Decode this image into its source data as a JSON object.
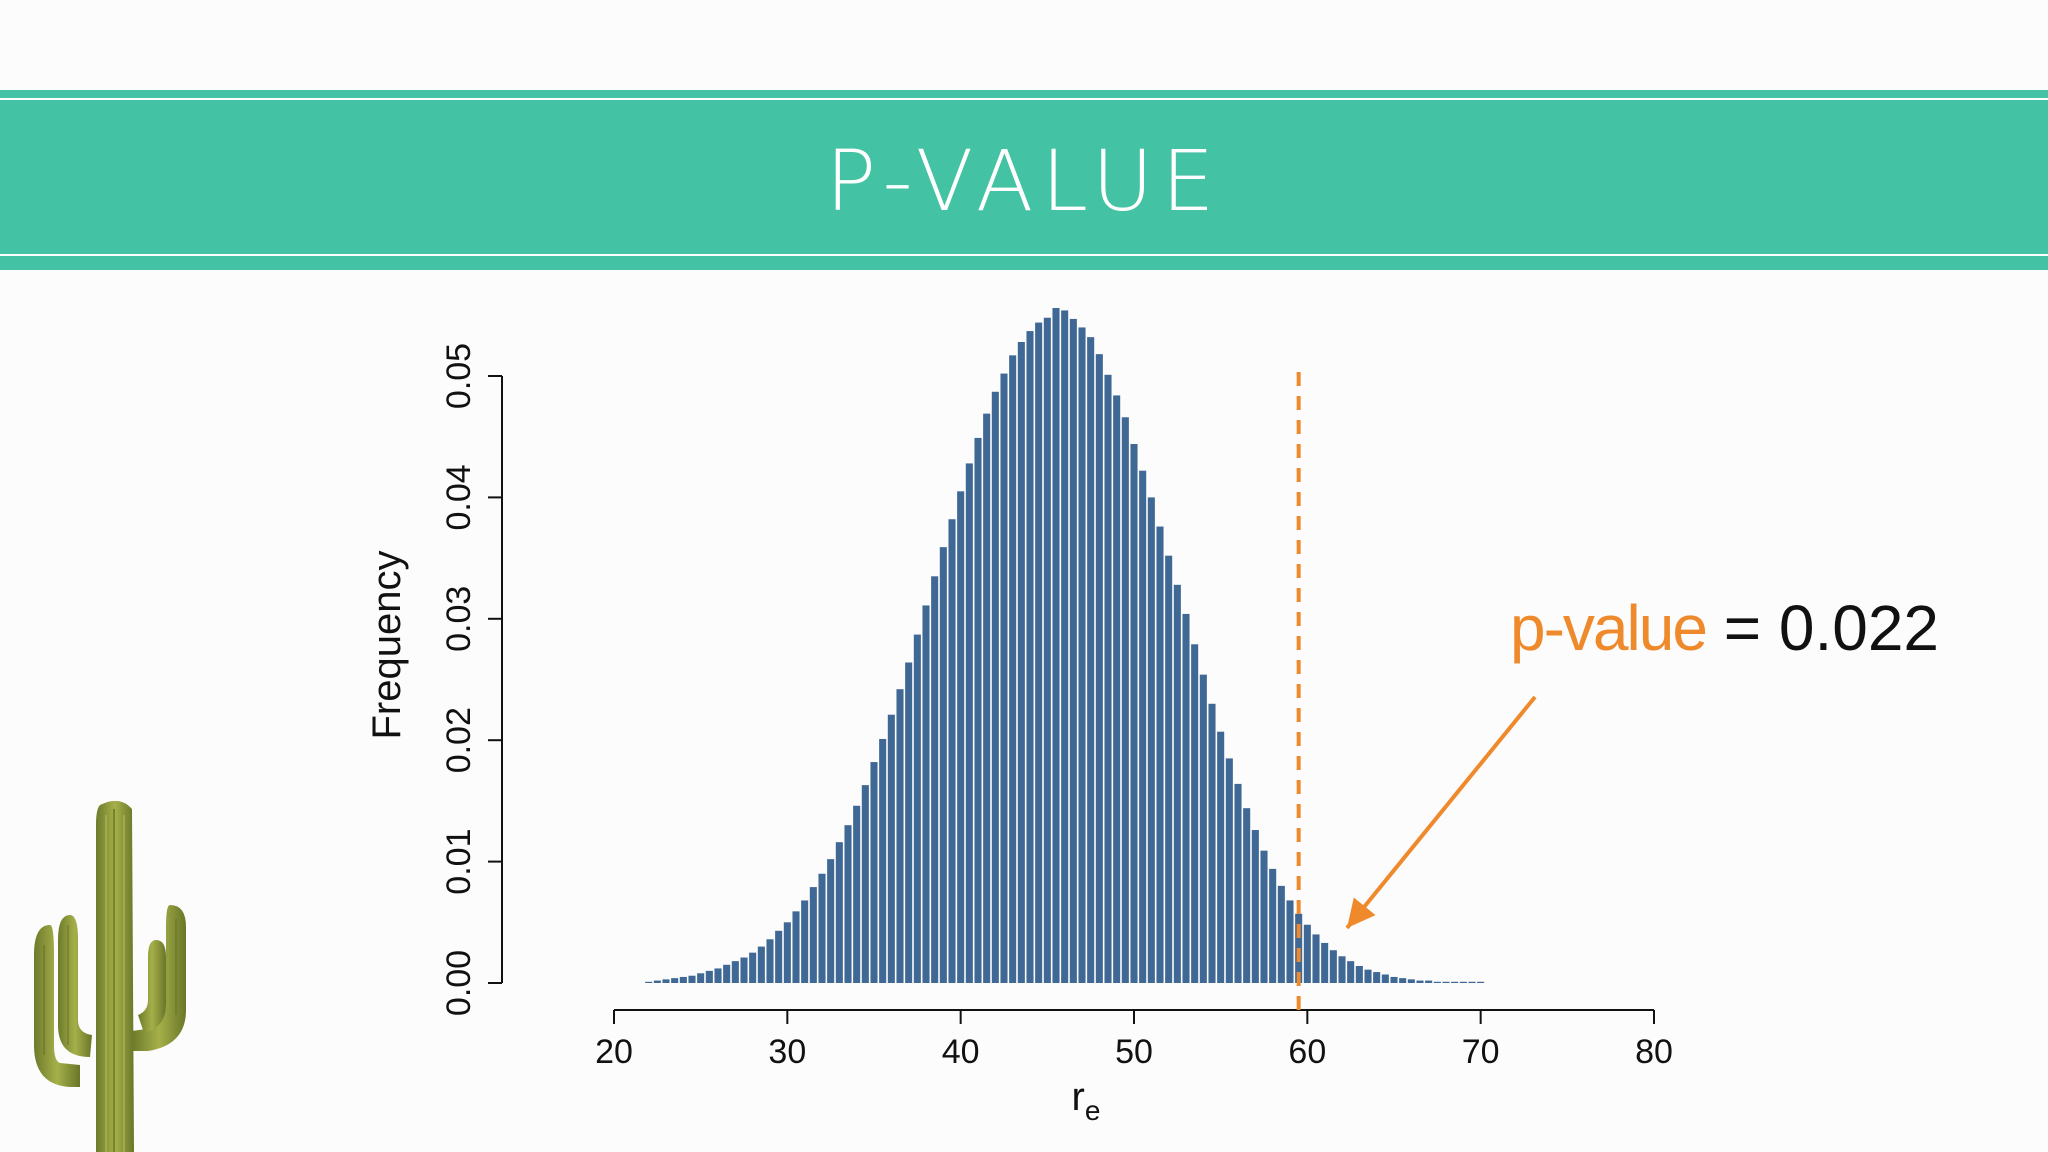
{
  "slide": {
    "title": "P-VALUE"
  },
  "annotation": {
    "term": "p-value",
    "equals": "=",
    "value": "0.022"
  },
  "colors": {
    "banner": "#43c3a4",
    "bars": "#3f6894",
    "threshold_line": "#ee8a2c",
    "arrow": "#ee8a2c",
    "text": "#111111"
  },
  "icons": {
    "decoration": "cactus-icon"
  },
  "chart_data": {
    "type": "bar",
    "title": "",
    "xlabel": "r",
    "xlabel_subscript": "e",
    "ylabel": "Frequency",
    "xlim": [
      20,
      80
    ],
    "ylim": [
      0,
      0.05
    ],
    "x_ticks": [
      20,
      30,
      40,
      50,
      60,
      70,
      80
    ],
    "x_tick_labels": [
      "20",
      "30",
      "40",
      "50",
      "60",
      "70",
      "80"
    ],
    "y_ticks": [
      0,
      0.01,
      0.02,
      0.03,
      0.04,
      0.05
    ],
    "y_tick_labels": [
      "0.00",
      "0.01",
      "0.02",
      "0.03",
      "0.04",
      "0.05"
    ],
    "bin_width": 0.5,
    "x": [
      22,
      22.5,
      23,
      23.5,
      24,
      24.5,
      25,
      25.5,
      26,
      26.5,
      27,
      27.5,
      28,
      28.5,
      29,
      29.5,
      30,
      30.5,
      31,
      31.5,
      32,
      32.5,
      33,
      33.5,
      34,
      34.5,
      35,
      35.5,
      36,
      36.5,
      37,
      37.5,
      38,
      38.5,
      39,
      39.5,
      40,
      40.5,
      41,
      41.5,
      42,
      42.5,
      43,
      43.5,
      44,
      44.5,
      45,
      45.5,
      46,
      46.5,
      47,
      47.5,
      48,
      48.5,
      49,
      49.5,
      50,
      50.5,
      51,
      51.5,
      52,
      52.5,
      53,
      53.5,
      54,
      54.5,
      55,
      55.5,
      56,
      56.5,
      57,
      57.5,
      58,
      58.5,
      59,
      59.5,
      60,
      60.5,
      61,
      61.5,
      62,
      62.5,
      63,
      63.5,
      64,
      64.5,
      65,
      65.5,
      66,
      66.5,
      67,
      67.5,
      68,
      68.5,
      69,
      69.5,
      70
    ],
    "values": [
      0.0001,
      0.0002,
      0.0003,
      0.0004,
      0.0005,
      0.0006,
      0.0008,
      0.001,
      0.0012,
      0.0015,
      0.0018,
      0.0021,
      0.0025,
      0.003,
      0.0036,
      0.0043,
      0.005,
      0.0059,
      0.0068,
      0.0079,
      0.009,
      0.0102,
      0.0116,
      0.013,
      0.0146,
      0.0163,
      0.0182,
      0.0201,
      0.0221,
      0.0242,
      0.0264,
      0.0287,
      0.0311,
      0.0335,
      0.0359,
      0.0382,
      0.0405,
      0.0428,
      0.0449,
      0.0469,
      0.0487,
      0.0502,
      0.0517,
      0.0528,
      0.0537,
      0.0544,
      0.0548,
      0.0556,
      0.0554,
      0.0547,
      0.054,
      0.0532,
      0.0518,
      0.0501,
      0.0484,
      0.0466,
      0.0444,
      0.0422,
      0.04,
      0.0376,
      0.0352,
      0.0328,
      0.0304,
      0.0279,
      0.0254,
      0.023,
      0.0207,
      0.0185,
      0.0164,
      0.0144,
      0.0126,
      0.0109,
      0.0094,
      0.008,
      0.0068,
      0.0057,
      0.0048,
      0.004,
      0.0033,
      0.0027,
      0.0022,
      0.0018,
      0.0014,
      0.0011,
      0.0009,
      0.0007,
      0.0005,
      0.0004,
      0.0003,
      0.0002,
      0.0002,
      0.0001,
      0.0001,
      0.0001,
      0.0001,
      0.0001,
      0.0001
    ],
    "threshold_x": 59.5,
    "threshold_style": "dashed",
    "grid": false,
    "legend": "none"
  }
}
